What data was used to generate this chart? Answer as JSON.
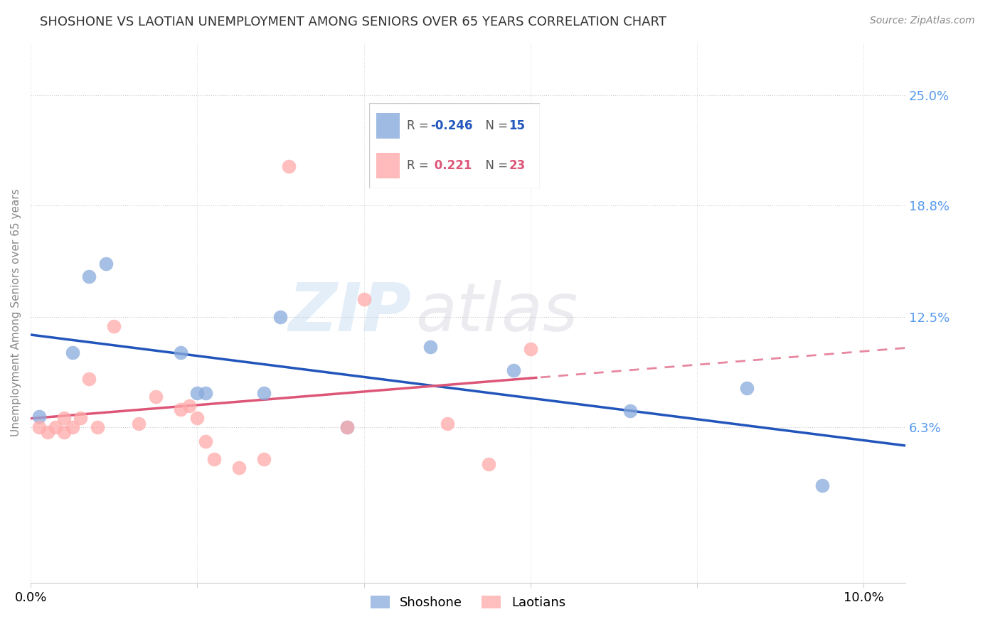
{
  "title": "SHOSHONE VS LAOTIAN UNEMPLOYMENT AMONG SENIORS OVER 65 YEARS CORRELATION CHART",
  "source": "Source: ZipAtlas.com",
  "ylabel": "Unemployment Among Seniors over 65 years",
  "xlim": [
    0.0,
    0.105
  ],
  "ylim": [
    -0.025,
    0.28
  ],
  "xtick_positions": [
    0.0,
    0.02,
    0.04,
    0.06,
    0.08,
    0.1
  ],
  "xticklabels": [
    "0.0%",
    "",
    "",
    "",
    "",
    "10.0%"
  ],
  "ytick_positions": [
    0.063,
    0.125,
    0.188,
    0.25
  ],
  "ytick_labels": [
    "6.3%",
    "12.5%",
    "18.8%",
    "25.0%"
  ],
  "shoshone_color": "#88AADD",
  "laotian_color": "#FFAAAA",
  "shoshone_line_color": "#2255BB",
  "laotian_line_color": "#DD5577",
  "watermark_zip": "#AACCEE",
  "watermark_atlas": "#BBBBBB",
  "shoshone_x": [
    0.001,
    0.005,
    0.007,
    0.009,
    0.018,
    0.02,
    0.021,
    0.028,
    0.03,
    0.038,
    0.048,
    0.058,
    0.072,
    0.086,
    0.095
  ],
  "shoshone_y": [
    0.069,
    0.105,
    0.148,
    0.155,
    0.105,
    0.082,
    0.082,
    0.082,
    0.125,
    0.063,
    0.108,
    0.095,
    0.072,
    0.085,
    0.03
  ],
  "laotian_x": [
    0.001,
    0.002,
    0.003,
    0.004,
    0.004,
    0.005,
    0.006,
    0.007,
    0.008,
    0.01,
    0.013,
    0.015,
    0.018,
    0.019,
    0.02,
    0.021,
    0.022,
    0.025,
    0.028,
    0.031,
    0.038,
    0.04,
    0.05,
    0.055,
    0.06
  ],
  "laotian_y": [
    0.063,
    0.06,
    0.063,
    0.06,
    0.068,
    0.063,
    0.068,
    0.09,
    0.063,
    0.12,
    0.065,
    0.08,
    0.073,
    0.075,
    0.068,
    0.055,
    0.045,
    0.04,
    0.045,
    0.21,
    0.063,
    0.135,
    0.065,
    0.042,
    0.107
  ]
}
